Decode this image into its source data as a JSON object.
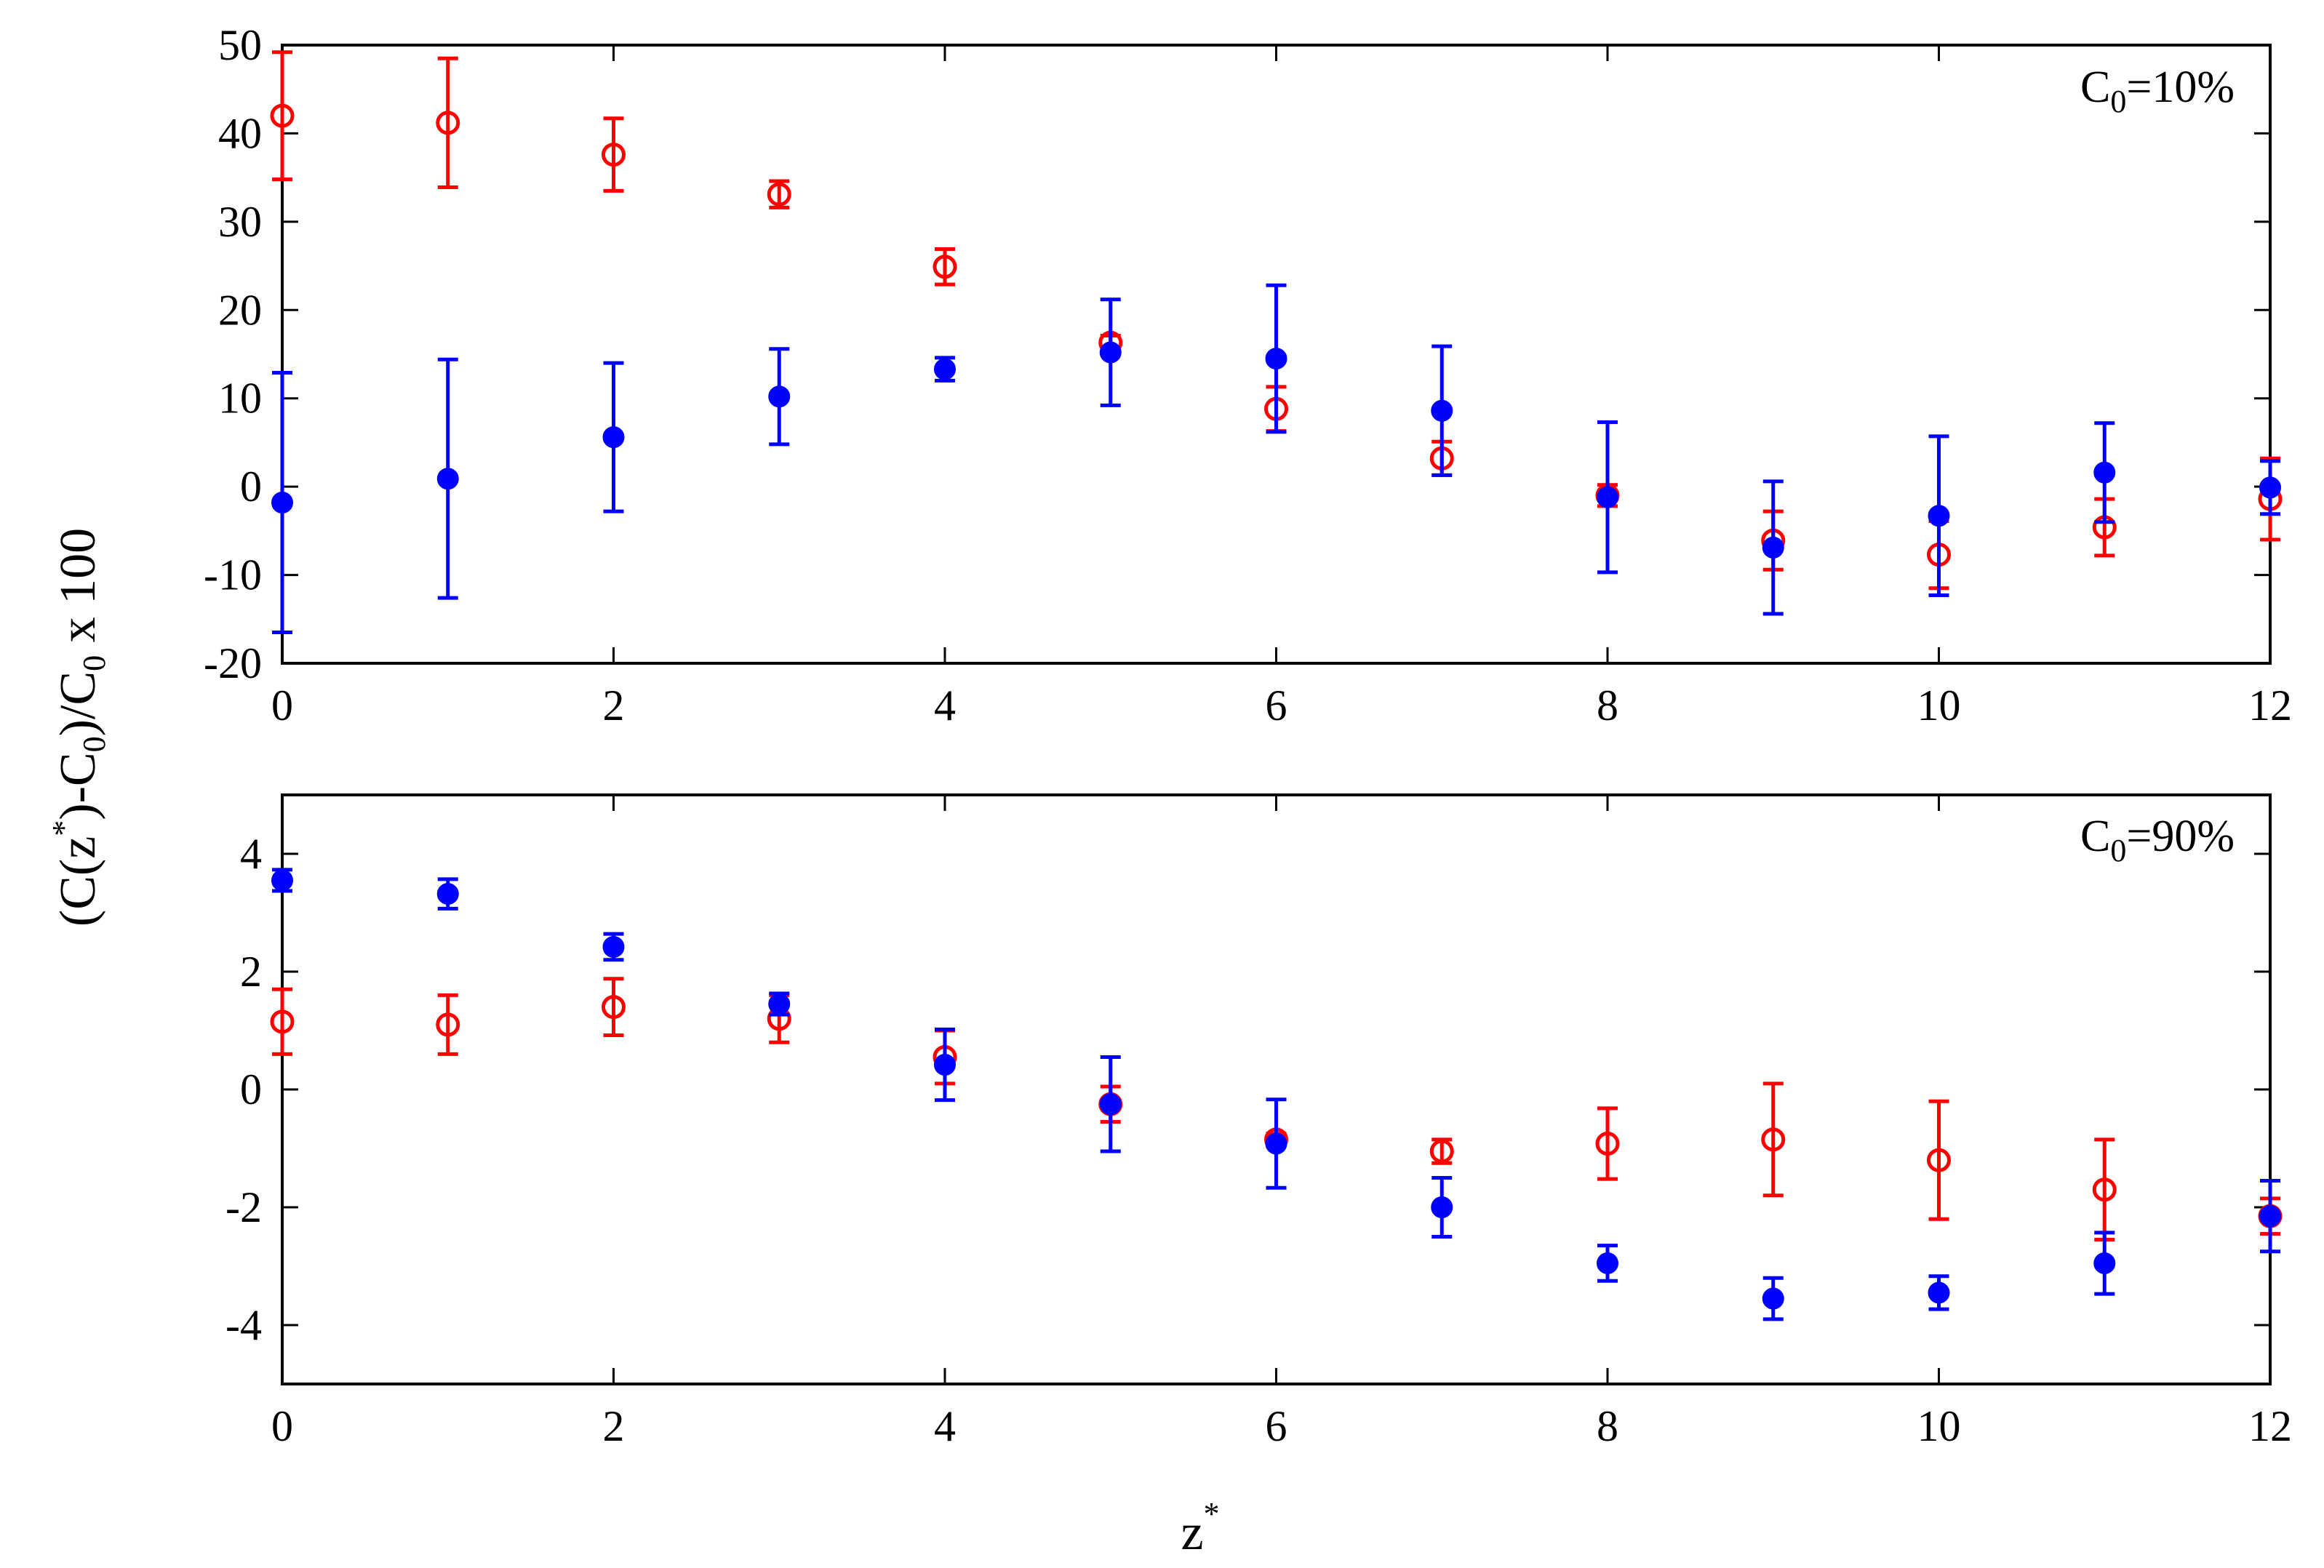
{
  "chart_data": [
    {
      "type": "scatter",
      "annotation": {
        "main": "C",
        "sub": "0",
        "rest": "=10%"
      },
      "x": [
        0,
        1,
        2,
        3,
        4,
        5,
        6,
        7,
        8,
        9,
        10,
        11,
        12
      ],
      "xlim": [
        0,
        12
      ],
      "ylim": [
        -20,
        50
      ],
      "xticks": [
        "0",
        "2",
        "4",
        "6",
        "8",
        "10",
        "12"
      ],
      "yticks": [
        "-20",
        "-10",
        "0",
        "10",
        "20",
        "30",
        "40",
        "50"
      ],
      "series": [
        {
          "marker": "open-circle",
          "color": "#ff0000",
          "values": [
            42,
            41.2,
            37.6,
            33.1,
            24.9,
            16.3,
            8.8,
            3.2,
            -1.0,
            -6.1,
            -7.7,
            -4.6,
            -1.4
          ],
          "errors": [
            7.2,
            7.3,
            4.1,
            1.5,
            2.0,
            0.8,
            2.5,
            1.9,
            1.2,
            3.3,
            3.8,
            3.2,
            4.6
          ]
        },
        {
          "marker": "filled-circle",
          "color": "#0000ff",
          "values": [
            -1.8,
            0.9,
            5.6,
            10.2,
            13.3,
            15.2,
            14.5,
            8.6,
            -1.2,
            -6.9,
            -3.3,
            1.6,
            -0.1
          ],
          "errors": [
            14.7,
            13.5,
            8.4,
            5.4,
            1.3,
            6.0,
            8.3,
            7.3,
            8.5,
            7.5,
            9.0,
            5.6,
            3.0
          ]
        }
      ]
    },
    {
      "type": "scatter",
      "annotation": {
        "main": "C",
        "sub": "0",
        "rest": "=90%"
      },
      "x": [
        0,
        1,
        2,
        3,
        4,
        5,
        6,
        7,
        8,
        9,
        10,
        11,
        12
      ],
      "xlim": [
        0,
        12
      ],
      "ylim": [
        -5,
        5
      ],
      "xticks": [
        "0",
        "2",
        "4",
        "6",
        "8",
        "10",
        "12"
      ],
      "yticks": [
        "-4",
        "-2",
        "0",
        "2",
        "4"
      ],
      "series": [
        {
          "marker": "open-circle",
          "color": "#ff0000",
          "values": [
            1.15,
            1.1,
            1.4,
            1.2,
            0.55,
            -0.25,
            -0.85,
            -1.05,
            -0.92,
            -0.85,
            -1.2,
            -1.7,
            -2.15
          ],
          "errors": [
            0.55,
            0.5,
            0.48,
            0.4,
            0.45,
            0.3,
            0.1,
            0.2,
            0.6,
            0.95,
            1.0,
            0.85,
            0.3
          ]
        },
        {
          "marker": "filled-circle",
          "color": "#0000ff",
          "values": [
            3.55,
            3.32,
            2.42,
            1.45,
            0.42,
            -0.25,
            -0.92,
            -2.0,
            -2.95,
            -3.55,
            -3.45,
            -2.95,
            -2.15
          ],
          "errors": [
            0.18,
            0.25,
            0.22,
            0.18,
            0.6,
            0.8,
            0.75,
            0.5,
            0.3,
            0.35,
            0.28,
            0.52,
            0.6
          ]
        }
      ]
    }
  ],
  "ylabel": {
    "p1": "(C(z",
    "sup": "*",
    "p2": ")-C",
    "sub1": "0",
    "p3": ")/C",
    "sub2": "0",
    "p4": " x 100"
  },
  "xlabel": {
    "main": "z",
    "sup": "*"
  }
}
